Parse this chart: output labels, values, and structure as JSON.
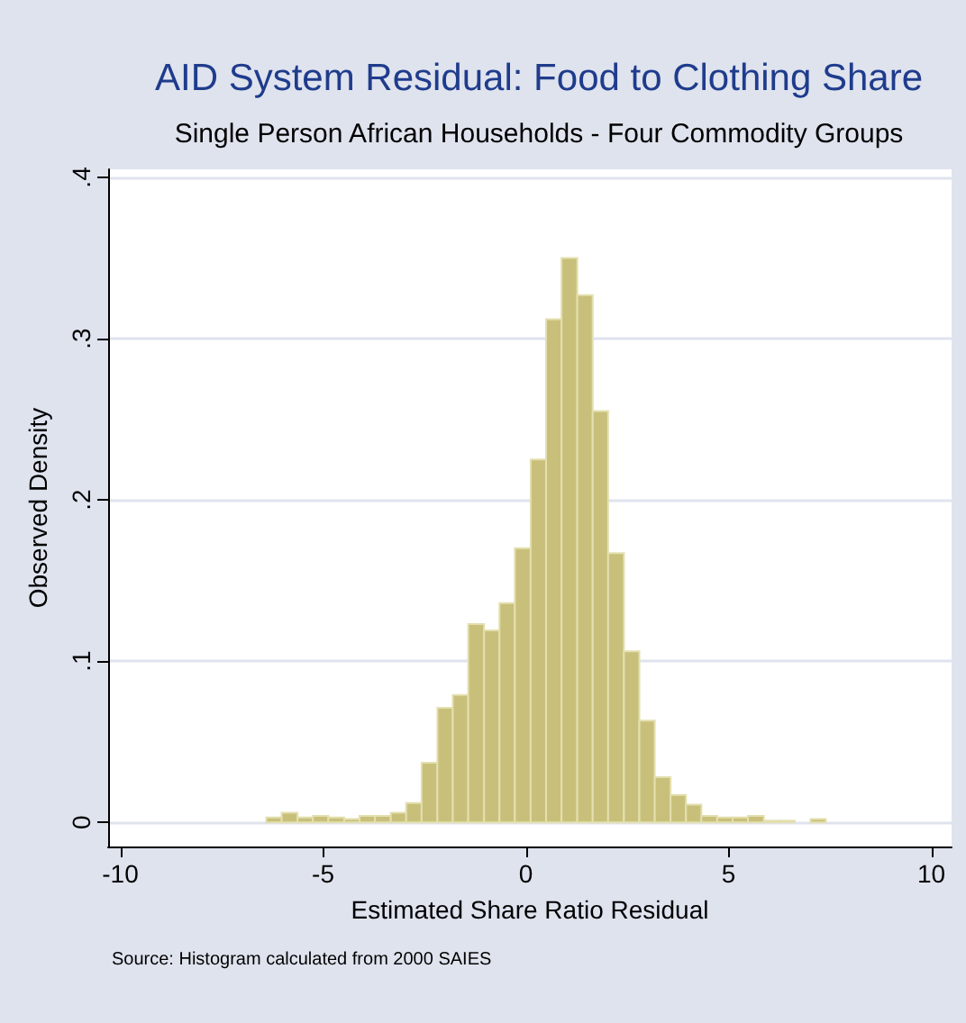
{
  "chart_data": {
    "type": "histogram",
    "title": "AID System Residual: Food to Clothing Share",
    "subtitle": "Single Person African Households - Four Commodity Groups",
    "xlabel": "Estimated Share Ratio Residual",
    "ylabel": "Observed Density",
    "annotations": [
      "Source: Histogram calculated from 2000 SAIES"
    ],
    "bins": [
      -6.4,
      -6.02,
      -5.63,
      -5.25,
      -4.87,
      -4.48,
      -4.1,
      -3.72,
      -3.33,
      -2.95,
      -2.57,
      -2.18,
      -1.8,
      -1.42,
      -1.03,
      -0.65,
      -0.27,
      0.12,
      0.5,
      0.88,
      1.27,
      1.65,
      2.03,
      2.42,
      2.8,
      3.18,
      3.57,
      3.95,
      4.33,
      4.72,
      5.1,
      5.48,
      5.87,
      6.25,
      6.63,
      7.02,
      7.4
    ],
    "values": [
      0.003,
      0.006,
      0.003,
      0.004,
      0.003,
      0.002,
      0.004,
      0.004,
      0.006,
      0.012,
      0.037,
      0.071,
      0.079,
      0.123,
      0.119,
      0.136,
      0.17,
      0.225,
      0.312,
      0.35,
      0.327,
      0.255,
      0.167,
      0.106,
      0.063,
      0.028,
      0.017,
      0.011,
      0.004,
      0.003,
      0.003,
      0.004,
      0.001,
      0.001,
      0,
      0.002
    ],
    "color": "#c8c07a",
    "xlim": [
      -10.3,
      10.5
    ],
    "xticks": [
      -10,
      -5,
      0,
      5,
      10
    ],
    "ylim": [
      -0.015,
      0.405
    ],
    "yticks": [
      {
        "value": 0,
        "label": "0"
      },
      {
        "value": 0.1,
        "label": ".1"
      },
      {
        "value": 0.2,
        "label": ".2"
      },
      {
        "value": 0.3,
        "label": ".3"
      },
      {
        "value": 0.4,
        "label": ".4"
      }
    ],
    "grid": "y"
  }
}
